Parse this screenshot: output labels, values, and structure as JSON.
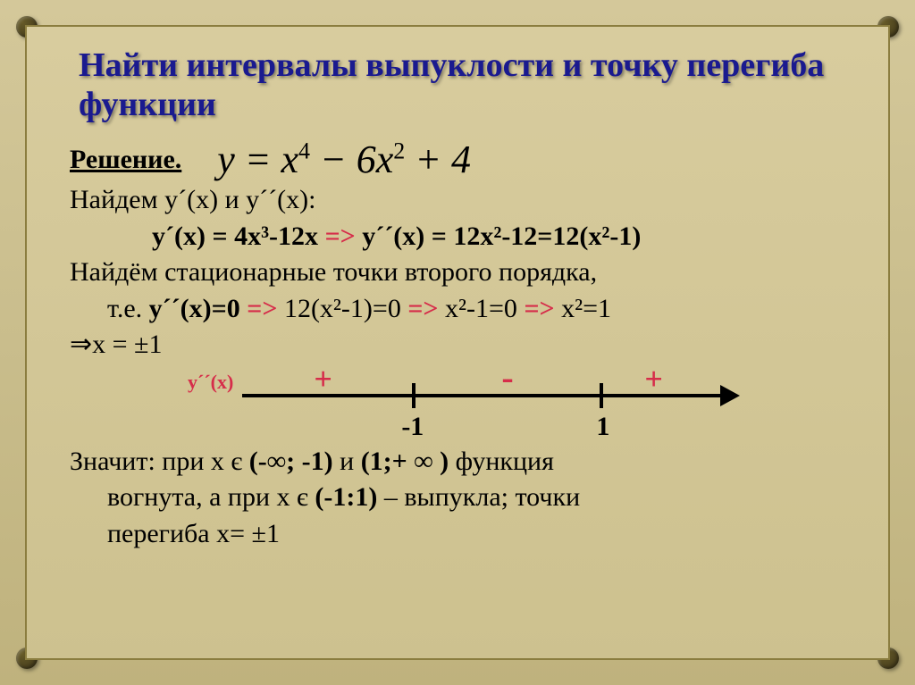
{
  "title": "Найти интервалы выпуклости и точку перегиба   функции",
  "formula_html": "y = x<sup>4</sup> − 6x<sup>2</sup> + 4",
  "lines": {
    "solution": "Решение.",
    "find": "Найдем y´(x) и y´´(x):",
    "deriv1": "y´(x) = 4x³-12x ",
    "imply1": " => ",
    "deriv2": " y´´(x) = 12x²-12=12(x²-1)",
    "stationary": "Найдём стационарные точки второго порядка,",
    "ie_prefix": "т.е. ",
    "ie_bold": "y´´(x)=0",
    "imply2": " => ",
    "eq1": "12(x²-1)=0",
    "imply3": " => ",
    "eq2": "x²-1=0",
    "imply4": " => ",
    "eq3": "x²=1",
    "res_arrow": "⇒",
    "res": "x = ±1",
    "conclusion1_a": "Значит: при х є ",
    "conclusion1_b": "(-∞; -1)",
    "conclusion1_c": " и ",
    "conclusion1_d": "(1;+ ∞ )",
    "conclusion1_e": " функция",
    "conclusion2_a": "вогнута, а при x є ",
    "conclusion2_b": "(-1:1)",
    "conclusion2_c": " – выпукла; точки",
    "conclusion3": "перегиба x= ±1"
  },
  "numline": {
    "ylabel": "y´´(x)",
    "signs": [
      "+",
      "-",
      "+"
    ],
    "ticks": [
      "-1",
      "1"
    ],
    "axis_color": "#000000",
    "sign_color": "#d62d4a"
  },
  "colors": {
    "title": "#1a1a8f",
    "accent": "#d62d4a",
    "text": "#000000",
    "bg_top": "#d4c89a",
    "bg_bottom": "#bfb27d"
  }
}
